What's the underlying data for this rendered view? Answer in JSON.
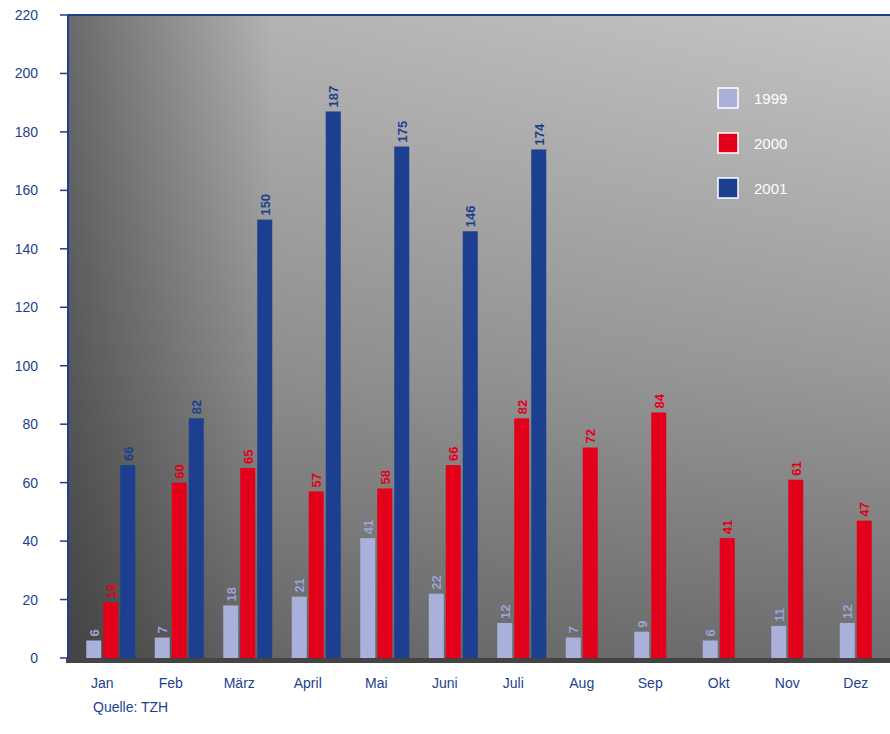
{
  "chart_data": {
    "type": "bar",
    "categories": [
      "Jan",
      "Feb",
      "März",
      "April",
      "Mai",
      "Juni",
      "Juli",
      "Aug",
      "Sep",
      "Okt",
      "Nov",
      "Dez"
    ],
    "series": [
      {
        "name": "1999",
        "color": "#a9b0da",
        "values": [
          6,
          7,
          18,
          21,
          41,
          22,
          12,
          7,
          9,
          6,
          11,
          12
        ]
      },
      {
        "name": "2000",
        "color": "#e2001a",
        "values": [
          19,
          60,
          65,
          57,
          58,
          66,
          82,
          72,
          84,
          41,
          61,
          47
        ]
      },
      {
        "name": "2001",
        "color": "#1d3f8f",
        "values": [
          66,
          82,
          150,
          187,
          175,
          146,
          174,
          null,
          null,
          null,
          null,
          null
        ]
      }
    ],
    "ylim": [
      0,
      220
    ],
    "yticks": [
      0,
      20,
      40,
      60,
      80,
      100,
      120,
      140,
      160,
      180,
      200,
      220
    ],
    "grid": false,
    "legend": "top-right",
    "data_labels": true,
    "annotations": [
      "Quelle: TZH"
    ]
  }
}
